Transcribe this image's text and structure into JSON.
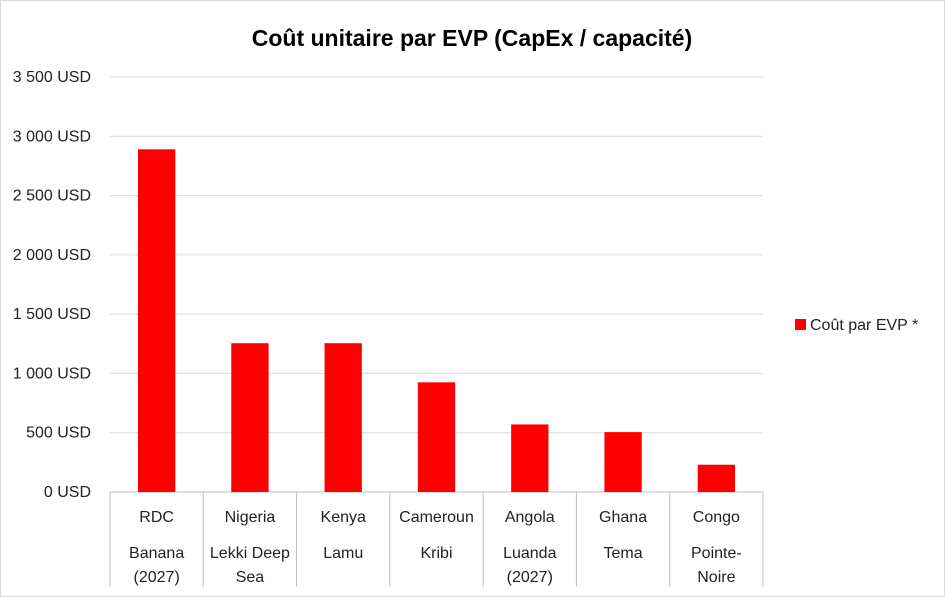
{
  "chart_data": {
    "type": "bar",
    "title": "Coût unitaire par EVP (CapEx / capacité)",
    "xlabel": "",
    "ylabel": "",
    "ylim": [
      0,
      3500
    ],
    "yticks": [
      "0 USD",
      "500 USD",
      "1 000 USD",
      "1 500 USD",
      "2 000 USD",
      "2 500 USD",
      "3 000 USD",
      "3 500 USD"
    ],
    "categories": [
      [
        "RDC",
        "Banana",
        "(2027)"
      ],
      [
        "Nigeria",
        "Lekki Deep",
        "Sea"
      ],
      [
        "Kenya",
        "Lamu"
      ],
      [
        "Cameroun",
        "Kribi"
      ],
      [
        "Angola",
        "Luanda",
        "(2027)"
      ],
      [
        "Ghana",
        "Tema"
      ],
      [
        "Congo",
        "Pointe-",
        "Noire"
      ]
    ],
    "series": [
      {
        "name": "Coût par EVP *",
        "color": "#ff0000",
        "values": [
          2890,
          1255,
          1255,
          925,
          570,
          505,
          230
        ]
      }
    ],
    "grid": true,
    "legend": "right"
  }
}
